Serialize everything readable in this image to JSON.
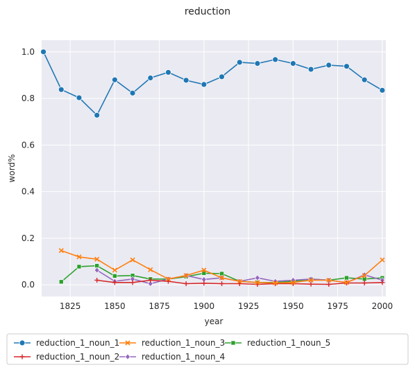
{
  "chart_data": {
    "type": "line",
    "title": "reduction",
    "xlabel": "year",
    "ylabel": "word%",
    "xlim": [
      1809,
      2002
    ],
    "ylim": [
      -0.05,
      1.05
    ],
    "xticks": [
      1825,
      1850,
      1875,
      1900,
      1925,
      1950,
      1975,
      2000
    ],
    "yticks": [
      0.0,
      0.2,
      0.4,
      0.6,
      0.8,
      1.0
    ],
    "grid": true,
    "legend_position": "bottom-outside",
    "series": [
      {
        "name": "reduction_1_noun_1",
        "color": "#1f77b4",
        "marker": "circle",
        "x": [
          1810,
          1820,
          1830,
          1840,
          1850,
          1860,
          1870,
          1880,
          1890,
          1900,
          1910,
          1920,
          1930,
          1940,
          1950,
          1960,
          1970,
          1980,
          1990,
          2000
        ],
        "y": [
          1.0,
          0.838,
          0.803,
          0.728,
          0.88,
          0.823,
          0.888,
          0.912,
          0.878,
          0.86,
          0.893,
          0.955,
          0.95,
          0.967,
          0.95,
          0.925,
          0.943,
          0.938,
          0.88,
          0.835
        ]
      },
      {
        "name": "reduction_1_noun_3",
        "color": "#ff7f0e",
        "marker": "x",
        "x": [
          1820,
          1830,
          1840,
          1850,
          1860,
          1870,
          1880,
          1890,
          1900,
          1910,
          1920,
          1930,
          1940,
          1950,
          1960,
          1970,
          1980,
          1990,
          2000
        ],
        "y": [
          0.147,
          0.12,
          0.11,
          0.063,
          0.107,
          0.065,
          0.025,
          0.04,
          0.063,
          0.03,
          0.015,
          0.01,
          0.008,
          0.01,
          0.02,
          0.02,
          0.01,
          0.04,
          0.107
        ]
      },
      {
        "name": "reduction_1_noun_5",
        "color": "#2ca02c",
        "marker": "square",
        "x": [
          1820,
          1830,
          1840,
          1850,
          1860,
          1870,
          1880,
          1890,
          1900,
          1910,
          1920,
          1930,
          1940,
          1950,
          1960,
          1970,
          1980,
          1990,
          2000
        ],
        "y": [
          0.013,
          0.078,
          0.082,
          0.038,
          0.04,
          0.025,
          0.025,
          0.035,
          0.05,
          0.048,
          0.015,
          0.01,
          0.01,
          0.015,
          0.025,
          0.02,
          0.03,
          0.025,
          0.03
        ]
      },
      {
        "name": "reduction_1_noun_2",
        "color": "#d62728",
        "marker": "plus",
        "x": [
          1840,
          1850,
          1860,
          1870,
          1880,
          1890,
          1900,
          1910,
          1920,
          1930,
          1940,
          1950,
          1960,
          1970,
          1980,
          1990,
          2000
        ],
        "y": [
          0.02,
          0.01,
          0.01,
          0.02,
          0.015,
          0.005,
          0.007,
          0.005,
          0.005,
          0.002,
          0.005,
          0.005,
          0.003,
          0.002,
          0.008,
          0.008,
          0.01
        ]
      },
      {
        "name": "reduction_1_noun_4",
        "color": "#9467bd",
        "marker": "diamond",
        "x": [
          1840,
          1850,
          1860,
          1870,
          1880,
          1890,
          1900,
          1910,
          1920,
          1930,
          1940,
          1950,
          1960,
          1970,
          1980,
          1990,
          2000
        ],
        "y": [
          0.063,
          0.015,
          0.025,
          0.005,
          0.025,
          0.04,
          0.023,
          0.03,
          0.015,
          0.03,
          0.015,
          0.02,
          0.025,
          0.02,
          0.01,
          0.043,
          0.02
        ]
      }
    ]
  }
}
